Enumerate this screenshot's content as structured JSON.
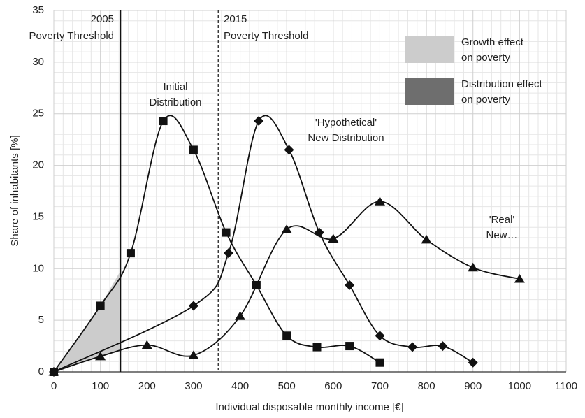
{
  "chart_data": {
    "type": "line",
    "x_label": "Individual  disposable monthly  income [€]",
    "y_label": "Share of inhabitants [%]",
    "xlim": [
      0,
      1100
    ],
    "ylim": [
      0,
      35
    ],
    "xticks": [
      0,
      100,
      200,
      300,
      400,
      500,
      600,
      700,
      800,
      900,
      1000,
      1100
    ],
    "yticks": [
      0,
      5,
      10,
      15,
      20,
      25,
      30,
      35
    ],
    "grid": true,
    "smooth": true,
    "series": [
      {
        "name": "Initial Distribution",
        "label_lines": [
          "Initial",
          "Distribution"
        ],
        "color": "#111111",
        "marker": "square",
        "x": [
          0,
          100,
          165,
          235,
          300,
          370,
          435,
          500,
          565,
          635,
          700
        ],
        "values": [
          0,
          6.4,
          11.5,
          24.3,
          21.5,
          13.5,
          8.4,
          3.5,
          2.4,
          2.5,
          0.9
        ]
      },
      {
        "name": "'Hypothetical' New Distribution",
        "label_lines": [
          "'Hypothetical'",
          "New Distribution"
        ],
        "color": "#111111",
        "marker": "diamond",
        "x": [
          0,
          300,
          375,
          440,
          505,
          570,
          635,
          700,
          770,
          835,
          900
        ],
        "values": [
          0,
          6.4,
          11.5,
          24.3,
          21.5,
          13.5,
          8.4,
          3.5,
          2.4,
          2.5,
          0.9
        ]
      },
      {
        "name": "'Real' New…",
        "label_lines": [
          "'Real'",
          "New…"
        ],
        "color": "#111111",
        "marker": "triangle",
        "x": [
          0,
          100,
          200,
          300,
          400,
          500,
          600,
          700,
          800,
          900,
          1000
        ],
        "values": [
          0,
          1.5,
          2.6,
          1.6,
          5.4,
          13.8,
          12.9,
          16.5,
          12.8,
          10.1,
          9.0
        ]
      }
    ],
    "thresholds": [
      {
        "value": 143,
        "label_lines": [
          "2005",
          "Poverty  Threshold"
        ],
        "style": "solid"
      },
      {
        "value": 353,
        "label_lines": [
          "2015",
          "Poverty  Threshold"
        ],
        "style": "dashed"
      }
    ],
    "legend": [
      {
        "label_lines": [
          "Growth effect",
          "on poverty"
        ],
        "color": "#cccccc"
      },
      {
        "label_lines": [
          "Distribution effect",
          "on poverty"
        ],
        "color": "#6e6e6e"
      }
    ],
    "legend_position": "upper right"
  }
}
